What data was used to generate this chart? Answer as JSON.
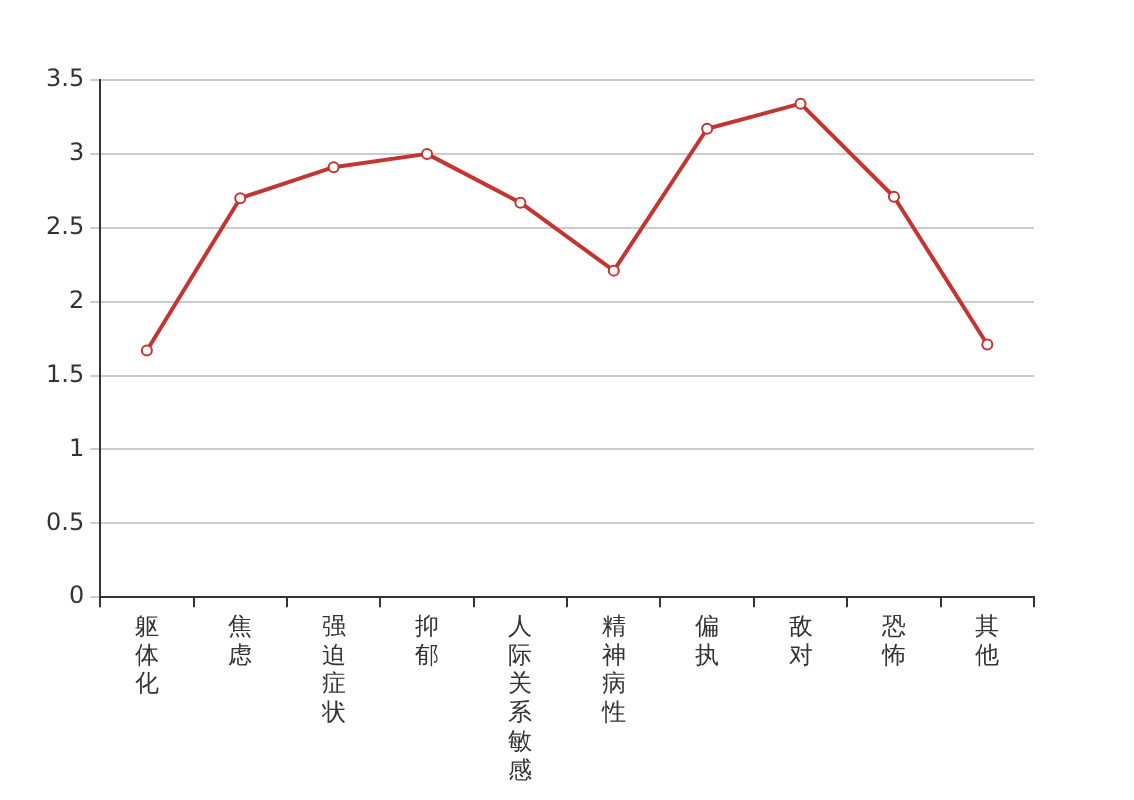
{
  "chart_data": {
    "type": "line",
    "categories": [
      "躯体化",
      "焦虑",
      "强迫症状",
      "抑郁",
      "人际关系敏感",
      "精神病性",
      "偏执",
      "敌对",
      "恐怖",
      "其他"
    ],
    "series": [
      {
        "color": "#c23531",
        "values": [
          1.67,
          2.7,
          2.91,
          3.0,
          2.67,
          2.21,
          3.17,
          3.34,
          2.71,
          1.71
        ]
      }
    ],
    "ylim": [
      0,
      3.5
    ],
    "yticks": [
      0,
      0.5,
      1,
      1.5,
      2,
      2.5,
      3,
      3.5
    ],
    "grid": "y",
    "marker": "circle"
  }
}
